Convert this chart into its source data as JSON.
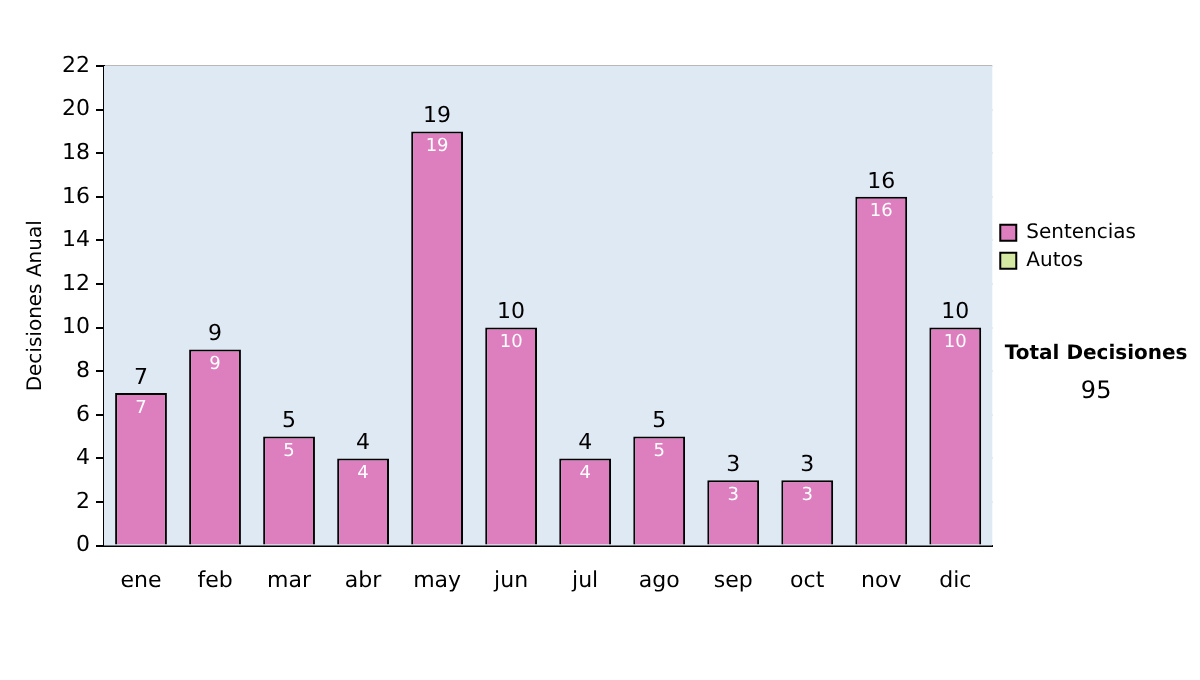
{
  "chart_data": {
    "type": "bar",
    "ylabel": "Decisiones Anual",
    "categories": [
      "ene",
      "feb",
      "mar",
      "abr",
      "may",
      "jun",
      "jul",
      "ago",
      "sep",
      "oct",
      "nov",
      "dic"
    ],
    "series": [
      {
        "name": "Sentencias",
        "color": "#dd7fbf",
        "values": [
          7,
          9,
          5,
          4,
          19,
          10,
          4,
          5,
          3,
          3,
          16,
          10
        ],
        "value_labels": [
          "7",
          "9",
          "5",
          "4",
          "19",
          "10",
          "4",
          "5",
          "3",
          "3",
          "16",
          "10"
        ]
      },
      {
        "name": "Autos",
        "color": "#d4e8a4",
        "values": [
          0,
          0,
          0,
          0,
          0,
          0,
          0,
          0,
          0,
          0,
          0,
          0
        ],
        "value_labels": [
          null,
          null,
          null,
          null,
          null,
          null,
          null,
          null,
          null,
          null,
          null,
          null
        ]
      }
    ],
    "stacked": true,
    "totals": [
      "7",
      "9",
      "5",
      "4",
      "19",
      "10",
      "4",
      "5",
      "3",
      "3",
      "16",
      "10"
    ],
    "ylim": [
      0,
      22
    ],
    "yticks": [
      0,
      2,
      4,
      6,
      8,
      10,
      12,
      14,
      16,
      18,
      20,
      22
    ],
    "grid": "y",
    "legend": "right",
    "annotations": [
      "Total Decisiones",
      "95"
    ]
  }
}
